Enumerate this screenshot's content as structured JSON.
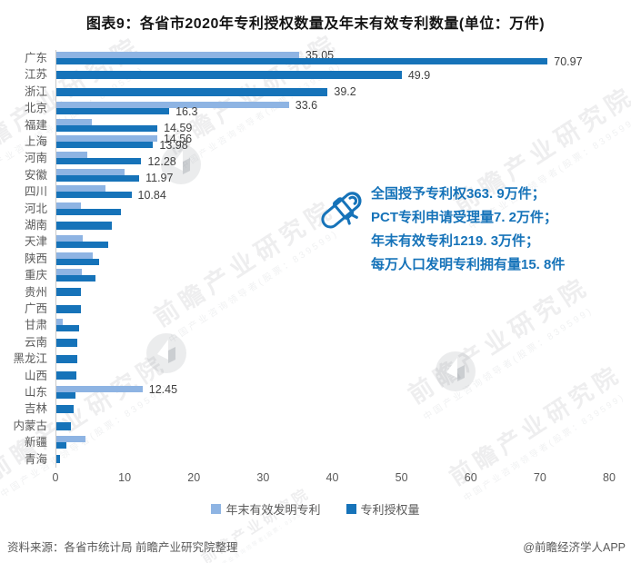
{
  "title": "图表9：各省市2020年专利授权数量及年末有效专利数量(单位：万件)",
  "colors": {
    "series_light": "#8EB4E3",
    "series_dark": "#1673B9",
    "annotation_text": "#1673B9",
    "axis_text": "#595959",
    "data_label_text": "#404040"
  },
  "chart_data": {
    "type": "bar",
    "orientation": "horizontal",
    "title": "图表9：各省市2020年专利授权数量及年末有效专利数量(单位：万件)",
    "unit": "万件",
    "xlim": [
      0,
      80
    ],
    "x_ticks": [
      0,
      10,
      20,
      30,
      40,
      50,
      60,
      70,
      80
    ],
    "grid": false,
    "legend_position": "bottom",
    "categories": [
      "广东",
      "江苏",
      "浙江",
      "北京",
      "福建",
      "上海",
      "河南",
      "安徽",
      "四川",
      "河北",
      "湖南",
      "天津",
      "陕西",
      "重庆",
      "贵州",
      "广西",
      "甘肃",
      "云南",
      "黑龙江",
      "山西",
      "山东",
      "吉林",
      "内蒙古",
      "新疆",
      "青海"
    ],
    "series": [
      {
        "name": "年末有效发明专利",
        "color": "#8EB4E3",
        "values": [
          35.05,
          null,
          null,
          33.6,
          5.1,
          14.56,
          4.5,
          9.9,
          7.1,
          3.6,
          null,
          3.8,
          5.3,
          3.7,
          null,
          null,
          0.9,
          null,
          null,
          null,
          12.45,
          null,
          null,
          4.2,
          null
        ],
        "labels": [
          "35.05",
          null,
          null,
          "33.6",
          null,
          "14.56",
          null,
          null,
          null,
          null,
          null,
          null,
          null,
          null,
          null,
          null,
          null,
          null,
          null,
          null,
          "12.45",
          null,
          null,
          null,
          null
        ]
      },
      {
        "name": "专利授权量",
        "color": "#1673B9",
        "values": [
          70.97,
          49.9,
          39.2,
          16.3,
          14.59,
          13.98,
          12.28,
          11.97,
          10.84,
          9.3,
          8.0,
          7.5,
          6.2,
          5.7,
          3.6,
          3.6,
          3.3,
          3.0,
          3.0,
          2.9,
          2.8,
          2.5,
          2.1,
          1.4,
          0.5
        ],
        "labels": [
          "70.97",
          "49.9",
          "39.2",
          "16.3",
          "14.59",
          "13.98",
          "12.28",
          "11.97",
          "10.84",
          null,
          null,
          null,
          null,
          null,
          null,
          null,
          null,
          null,
          null,
          null,
          null,
          null,
          null,
          null,
          null
        ]
      }
    ]
  },
  "annotation": {
    "lines": [
      "全国授予专利权363. 9万件；",
      "PCT专利申请受理量7. 2万件；",
      "年末有效专利1219. 3万件；",
      "每万人口发明专利拥有量15. 8件"
    ]
  },
  "legend": {
    "items": [
      {
        "label": "年末有效发明专利",
        "color": "#8EB4E3"
      },
      {
        "label": "专利授权量",
        "color": "#1673B9"
      }
    ]
  },
  "watermark": {
    "text": "前瞻产业研究院",
    "subtext": "中国产业咨询领导者(股票：839599)"
  },
  "footer": {
    "source": "资料来源：各省市统计局 前瞻产业研究院整理",
    "credit": "@前瞻经济学人APP"
  }
}
